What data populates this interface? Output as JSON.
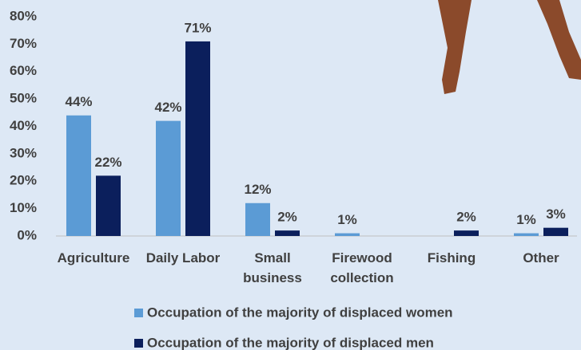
{
  "chart_data": {
    "type": "bar",
    "categories": [
      "Agriculture",
      "Daily Labor",
      "Small business",
      "Firewood collection",
      "Fishing",
      "Other"
    ],
    "series": [
      {
        "name": "Occupation of the majority of displaced women",
        "color": "#5b9bd5",
        "values": [
          44,
          42,
          12,
          1,
          null,
          1
        ],
        "value_labels": [
          "44%",
          "42%",
          "12%",
          "1%",
          null,
          "1%"
        ]
      },
      {
        "name": "Occupation of the majority of displaced men",
        "color": "#0b1f5c",
        "values": [
          22,
          71,
          2,
          null,
          2,
          3
        ],
        "value_labels": [
          "22%",
          "71%",
          "2%",
          null,
          "2%",
          "3%"
        ]
      }
    ],
    "ylim": [
      0,
      80
    ],
    "yticks": [
      {
        "value": 0,
        "label": "0%"
      },
      {
        "value": 10,
        "label": "10%"
      },
      {
        "value": 20,
        "label": "20%"
      },
      {
        "value": 30,
        "label": "30%"
      },
      {
        "value": 40,
        "label": "40%"
      },
      {
        "value": 50,
        "label": "50%"
      },
      {
        "value": 60,
        "label": "60%"
      },
      {
        "value": 70,
        "label": "70%"
      },
      {
        "value": 80,
        "label": "80%"
      }
    ],
    "grid": false,
    "legend": "bottom"
  }
}
